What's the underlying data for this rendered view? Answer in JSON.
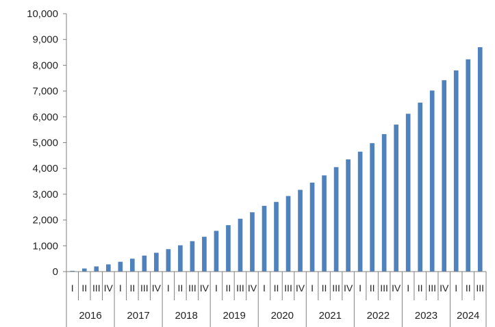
{
  "chart_data": {
    "type": "bar",
    "title": "",
    "xlabel": "",
    "ylabel": "",
    "ylim": [
      0,
      10000
    ],
    "yticks": [
      "0",
      "1,000",
      "2,000",
      "3,000",
      "4,000",
      "5,000",
      "6,000",
      "7,000",
      "8,000",
      "9,000",
      "10,000"
    ],
    "grid": false,
    "legend": "none",
    "bar_color": "#4f81bd",
    "quarter_labels": [
      "I",
      "II",
      "III",
      "IV"
    ],
    "years": [
      {
        "label": "2016",
        "quarters": 4
      },
      {
        "label": "2017",
        "quarters": 4
      },
      {
        "label": "2018",
        "quarters": 4
      },
      {
        "label": "2019",
        "quarters": 4
      },
      {
        "label": "2020",
        "quarters": 4
      },
      {
        "label": "2021",
        "quarters": 4
      },
      {
        "label": "2022",
        "quarters": 4
      },
      {
        "label": "2023",
        "quarters": 4
      },
      {
        "label": "2024",
        "quarters": 3
      }
    ],
    "values": [
      30,
      120,
      200,
      280,
      380,
      500,
      620,
      730,
      870,
      1020,
      1180,
      1350,
      1580,
      1800,
      2050,
      2300,
      2550,
      2700,
      2930,
      3170,
      3450,
      3730,
      4050,
      4350,
      4650,
      4980,
      5330,
      5700,
      6120,
      6550,
      7020,
      7420,
      7800,
      8230,
      8700
    ]
  }
}
